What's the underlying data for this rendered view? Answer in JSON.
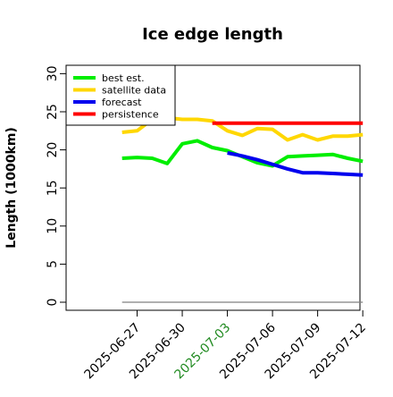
{
  "chart_data": {
    "type": "line",
    "title": "Ice edge length",
    "xlabel": "",
    "ylabel": "Length (1000km)",
    "ylim": [
      0,
      31
    ],
    "xlim": [
      "2025-06-24",
      "2025-07-13"
    ],
    "yticks": [
      0,
      5,
      10,
      15,
      20,
      25,
      30
    ],
    "xticks": [
      "2025-06-27",
      "2025-06-30",
      "2025-07-03",
      "2025-07-06",
      "2025-07-09",
      "2025-07-12"
    ],
    "highlighted_xtick": "2025-07-03",
    "grid": false,
    "legend_position": "top-left",
    "series": [
      {
        "name": "best est.",
        "color": "#00ee00",
        "x": [
          "2025-06-26",
          "2025-06-27",
          "2025-06-28",
          "2025-06-29",
          "2025-06-30",
          "2025-07-01",
          "2025-07-02",
          "2025-07-03",
          "2025-07-04",
          "2025-07-05",
          "2025-07-06",
          "2025-07-07",
          "2025-07-08",
          "2025-07-09",
          "2025-07-10",
          "2025-07-11",
          "2025-07-12"
        ],
        "y": [
          18.9,
          19.0,
          18.9,
          18.2,
          20.8,
          21.2,
          20.3,
          19.9,
          19.1,
          18.3,
          17.9,
          19.1,
          19.2,
          19.3,
          19.4,
          18.9,
          18.5
        ]
      },
      {
        "name": "satellite data",
        "color": "#ffd700",
        "x": [
          "2025-06-26",
          "2025-06-27",
          "2025-06-28",
          "2025-06-29",
          "2025-06-30",
          "2025-07-01",
          "2025-07-02",
          "2025-07-03",
          "2025-07-04",
          "2025-07-05",
          "2025-07-06",
          "2025-07-07",
          "2025-07-08",
          "2025-07-09",
          "2025-07-10",
          "2025-07-11",
          "2025-07-12"
        ],
        "y": [
          22.3,
          22.5,
          24.0,
          24.2,
          24.0,
          24.0,
          23.8,
          22.5,
          21.9,
          22.8,
          22.7,
          21.3,
          22.0,
          21.3,
          21.8,
          21.8,
          22.0
        ]
      },
      {
        "name": "forecast",
        "color": "#0000ee",
        "x": [
          "2025-07-03",
          "2025-07-04",
          "2025-07-05",
          "2025-07-06",
          "2025-07-07",
          "2025-07-08",
          "2025-07-09",
          "2025-07-10",
          "2025-07-11",
          "2025-07-12"
        ],
        "y": [
          19.6,
          19.2,
          18.7,
          18.1,
          17.5,
          17.0,
          17.0,
          16.9,
          16.8,
          16.7
        ]
      },
      {
        "name": "persistence",
        "color": "#ff0000",
        "x": [
          "2025-07-02",
          "2025-07-12"
        ],
        "y": [
          23.5,
          23.5
        ]
      },
      {
        "name": "",
        "color": "#808080",
        "x": [
          "2025-06-26",
          "2025-07-12"
        ],
        "y": [
          0,
          0
        ]
      }
    ]
  }
}
